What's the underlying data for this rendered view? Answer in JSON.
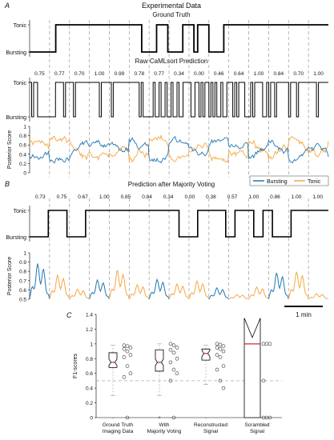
{
  "panel_letters": {
    "a": "A",
    "b": "B",
    "c": "C"
  },
  "panel_a": {
    "title": "Experimental Data",
    "ground_truth_title": "Ground Truth",
    "raw_title": "Raw CaMLsort Prediction",
    "state_labels": {
      "top": "Tonic",
      "bottom": "Bursting"
    },
    "posterior_ylabel": "Posterior Score",
    "legend": [
      "Bursting",
      "Tonic"
    ],
    "raw_scores": [
      "0.75",
      "0.77",
      "0.70",
      "1.00",
      "0.99",
      "0.78",
      "0.77",
      "0.34",
      "0.00",
      "0.46",
      "0.64",
      "1.00",
      "0.84",
      "0.70",
      "1.00"
    ],
    "posterior_yticks": [
      "1",
      "0.8",
      "0.6",
      "0.4",
      "0.2",
      "0"
    ]
  },
  "panel_b": {
    "title": "Prediction after Majority Voting",
    "state_labels": {
      "top": "Tonic",
      "bottom": "Bursting"
    },
    "posterior_ylabel": "Posterior Score",
    "voted_scores": [
      "0.73",
      "0.75",
      "0.67",
      "1.00",
      "0.85",
      "0.84",
      "0.34",
      "0.00",
      "0.38",
      "0.57",
      "1.00",
      "0.86",
      "1.00",
      "1.00"
    ],
    "posterior_yticks": [
      "1",
      "0.9",
      "0.8",
      "0.7",
      "0.6",
      "0.5"
    ],
    "scalebar_label": "1 min"
  },
  "colors": {
    "bursting": "#1f77b4",
    "tonic": "#f5a742",
    "median": "#d62728",
    "state": "#000000",
    "guide": "#999999"
  },
  "chart_data": [
    {
      "type": "line",
      "name": "Ground Truth",
      "x_segments": 15,
      "state_sequence": [
        0,
        0,
        0,
        0,
        0,
        0,
        0,
        1,
        1,
        1,
        1,
        1,
        1,
        1,
        1,
        1,
        1,
        1,
        1,
        1,
        1,
        1,
        1,
        1,
        1,
        1,
        1,
        1,
        1,
        1,
        0,
        0,
        0,
        0,
        1,
        1,
        1,
        0,
        0,
        0,
        0,
        1,
        1,
        1,
        0,
        1,
        1,
        1,
        0,
        0,
        0,
        0,
        1,
        1,
        1,
        1,
        1,
        1,
        1,
        1,
        1,
        1,
        1,
        1,
        1,
        1,
        1,
        1,
        1,
        1,
        1,
        1,
        1,
        1,
        1,
        1,
        1,
        1,
        1,
        1
      ],
      "yticklabels": [
        "Tonic",
        "Bursting"
      ]
    },
    {
      "type": "line",
      "name": "Raw CaMLsort Prediction",
      "segment_scores": [
        0.75,
        0.77,
        0.7,
        1.0,
        0.99,
        0.78,
        0.77,
        0.34,
        0.0,
        0.46,
        0.64,
        1.0,
        0.84,
        0.7,
        1.0
      ],
      "yticklabels": [
        "Tonic",
        "Bursting"
      ]
    },
    {
      "type": "line",
      "name": "Posterior Score (raw)",
      "ylabel": "Posterior Score",
      "ylim": [
        0,
        1
      ],
      "series": [
        {
          "name": "Bursting"
        },
        {
          "name": "Tonic"
        }
      ],
      "legend_position": "bottom-right"
    },
    {
      "type": "line",
      "name": "Prediction after Majority Voting",
      "segment_scores": [
        0.73,
        0.75,
        0.67,
        1.0,
        0.85,
        0.84,
        0.34,
        0.0,
        0.38,
        0.57,
        1.0,
        0.86,
        1.0,
        1.0
      ],
      "yticklabels": [
        "Tonic",
        "Bursting"
      ]
    },
    {
      "type": "line",
      "name": "Posterior Score (voted)",
      "ylabel": "Posterior Score",
      "ylim": [
        0.5,
        1
      ],
      "series": [
        {
          "name": "Bursting"
        },
        {
          "name": "Tonic"
        }
      ]
    },
    {
      "type": "box",
      "ylabel": "F1-scores",
      "ylim": [
        0,
        1.4
      ],
      "yticks": [
        0,
        0.2,
        0.4,
        0.6,
        0.8,
        1,
        1.2,
        1.4
      ],
      "chance_line": 0.5,
      "categories": [
        [
          "Ground Truth",
          "Imaging Data"
        ],
        [
          "With",
          "Majority Voting"
        ],
        [
          "Reconstructed",
          "Signal"
        ],
        [
          "Scrambled",
          "Signal"
        ]
      ],
      "series": [
        {
          "name": "Ground Truth Imaging Data",
          "q1": 0.68,
          "median": 0.75,
          "q3": 0.88,
          "whisker_low": 0.3,
          "whisker_high": 0.98,
          "points": [
            0.98,
            0.97,
            0.95,
            0.93,
            0.9,
            0.85,
            0.82,
            0.7,
            0.6,
            0.55,
            0.0
          ]
        },
        {
          "name": "With Majority Voting",
          "q1": 0.63,
          "median": 0.75,
          "q3": 0.92,
          "whisker_low": 0.3,
          "whisker_high": 1.0,
          "points": [
            1.0,
            0.98,
            0.95,
            0.92,
            0.88,
            0.8,
            0.75,
            0.65,
            0.6,
            0.5,
            0.0
          ]
        },
        {
          "name": "Reconstructed Signal",
          "q1": 0.78,
          "median": 0.87,
          "q3": 0.93,
          "whisker_low": 0.45,
          "whisker_high": 0.98,
          "points": [
            1.0,
            0.99,
            0.97,
            0.95,
            0.93,
            0.9,
            0.85,
            0.82,
            0.7,
            0.65,
            0.5,
            0.4
          ]
        },
        {
          "name": "Scrambled Signal",
          "q1": 0.0,
          "median": 1.0,
          "q3": 1.0,
          "whisker_low": 0.0,
          "whisker_high": 1.35,
          "points": [
            1.0,
            1.0,
            1.0,
            0.5,
            0.0,
            0.0,
            0.0
          ]
        }
      ]
    }
  ]
}
